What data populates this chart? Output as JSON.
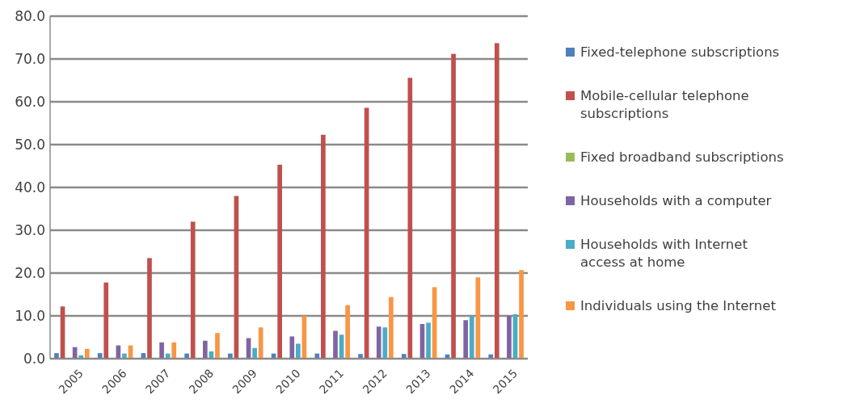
{
  "chart_data": {
    "type": "bar",
    "categories": [
      "2005",
      "2006",
      "2007",
      "2008",
      "2009",
      "2010",
      "2011",
      "2012",
      "2013",
      "2014",
      "2015"
    ],
    "series": [
      {
        "name": "Fixed-telephone subscriptions",
        "color": "#4f81bd",
        "values": [
          1.3,
          1.3,
          1.3,
          1.2,
          1.2,
          1.2,
          1.2,
          1.1,
          1.1,
          1.0,
          1.0
        ]
      },
      {
        "name": "Mobile-cellular telephone subscriptions",
        "color": "#c0504d",
        "values": [
          12.2,
          17.8,
          23.5,
          32.0,
          38.0,
          45.3,
          52.3,
          58.6,
          65.6,
          71.2,
          73.7
        ]
      },
      {
        "name": "Fixed broadband subscriptions",
        "color": "#9bbb59",
        "values": [
          null,
          null,
          null,
          null,
          null,
          null,
          null,
          null,
          null,
          null,
          null
        ]
      },
      {
        "name": "Households with a computer",
        "color": "#8064a2",
        "values": [
          2.7,
          3.1,
          3.8,
          4.2,
          4.8,
          5.2,
          6.5,
          7.5,
          8.1,
          9.0,
          10.0
        ]
      },
      {
        "name": "Households with Internet access at home",
        "color": "#4bacc6",
        "values": [
          0.8,
          1.2,
          1.2,
          1.7,
          2.5,
          3.5,
          5.6,
          7.3,
          8.4,
          10.0,
          10.4
        ]
      },
      {
        "name": "Individuals using the Internet",
        "color": "#f79646",
        "values": [
          2.3,
          3.1,
          3.8,
          6.0,
          7.3,
          10.0,
          12.5,
          14.4,
          16.7,
          19.0,
          20.7
        ]
      }
    ],
    "ylim": [
      0,
      80
    ],
    "yticks": [
      {
        "value": 0,
        "label": "0.0"
      },
      {
        "value": 10,
        "label": "10.0"
      },
      {
        "value": 20,
        "label": "20.0"
      },
      {
        "value": 30,
        "label": "30.0"
      },
      {
        "value": 40,
        "label": "40.0"
      },
      {
        "value": 50,
        "label": "50.0"
      },
      {
        "value": 60,
        "label": "60.0"
      },
      {
        "value": 70,
        "label": "70.0"
      },
      {
        "value": 80,
        "label": "80.0"
      }
    ],
    "grid": "y",
    "legend": "right"
  }
}
